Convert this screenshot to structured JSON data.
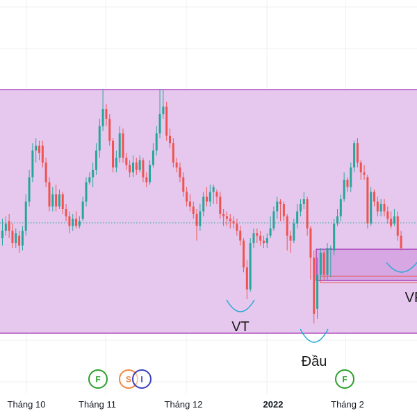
{
  "chart_data": {
    "type": "candlestick",
    "y_range": [
      0,
      100
    ],
    "grid": true,
    "candle_colors": {
      "up": "#26a69a",
      "down": "#ef5350"
    },
    "zone_color": "#e6c8ee",
    "zone_border_color": "#9c27b0",
    "current_price_line_color": "#26a69a",
    "x_tick_labels": [
      "Tháng 10",
      "Tháng 11",
      "Tháng 12",
      "2022",
      "Tháng 2"
    ],
    "event_badges": [
      {
        "letter": "F",
        "color": "#2ca02c"
      },
      {
        "letter": "S",
        "color": "#f0883e"
      },
      {
        "letter": "I",
        "color": "#3b3fbf"
      },
      {
        "letter": "F",
        "color": "#2ca02c"
      }
    ],
    "annotations": [
      "VT",
      "Đầu",
      "VP"
    ],
    "candles": [
      {
        "o": 39,
        "c": 42,
        "h": 47,
        "l": 36
      },
      {
        "o": 42,
        "c": 45,
        "h": 48,
        "l": 40
      },
      {
        "o": 46,
        "c": 42,
        "h": 49,
        "l": 39
      },
      {
        "o": 42,
        "c": 37,
        "h": 45,
        "l": 35
      },
      {
        "o": 37,
        "c": 41,
        "h": 43,
        "l": 35
      },
      {
        "o": 40,
        "c": 36,
        "h": 42,
        "l": 33
      },
      {
        "o": 36,
        "c": 42,
        "h": 44,
        "l": 34
      },
      {
        "o": 42,
        "c": 54,
        "h": 57,
        "l": 40
      },
      {
        "o": 54,
        "c": 64,
        "h": 67,
        "l": 52
      },
      {
        "o": 64,
        "c": 75,
        "h": 78,
        "l": 62
      },
      {
        "o": 75,
        "c": 77,
        "h": 80,
        "l": 70
      },
      {
        "o": 77,
        "c": 74,
        "h": 79,
        "l": 71
      },
      {
        "o": 77,
        "c": 70,
        "h": 79,
        "l": 68
      },
      {
        "o": 70,
        "c": 62,
        "h": 72,
        "l": 60
      },
      {
        "o": 62,
        "c": 52,
        "h": 64,
        "l": 50
      },
      {
        "o": 52,
        "c": 57,
        "h": 60,
        "l": 50
      },
      {
        "o": 57,
        "c": 52,
        "h": 61,
        "l": 50
      },
      {
        "o": 52,
        "c": 57,
        "h": 59,
        "l": 51
      },
      {
        "o": 57,
        "c": 51,
        "h": 58,
        "l": 49
      },
      {
        "o": 51,
        "c": 48,
        "h": 53,
        "l": 46
      },
      {
        "o": 48,
        "c": 44,
        "h": 50,
        "l": 41
      },
      {
        "o": 44,
        "c": 47,
        "h": 49,
        "l": 42
      },
      {
        "o": 47,
        "c": 44,
        "h": 50,
        "l": 43
      },
      {
        "o": 44,
        "c": 46,
        "h": 48,
        "l": 43
      },
      {
        "o": 47,
        "c": 54,
        "h": 56,
        "l": 46
      },
      {
        "o": 54,
        "c": 62,
        "h": 64,
        "l": 52
      },
      {
        "o": 62,
        "c": 64,
        "h": 66,
        "l": 61
      },
      {
        "o": 64,
        "c": 67,
        "h": 70,
        "l": 60
      },
      {
        "o": 67,
        "c": 75,
        "h": 78,
        "l": 65
      },
      {
        "o": 75,
        "c": 85,
        "h": 88,
        "l": 72
      },
      {
        "o": 85,
        "c": 92,
        "h": 100,
        "l": 83
      },
      {
        "o": 92,
        "c": 88,
        "h": 94,
        "l": 85
      },
      {
        "o": 88,
        "c": 79,
        "h": 90,
        "l": 77
      },
      {
        "o": 79,
        "c": 68,
        "h": 80,
        "l": 66
      },
      {
        "o": 68,
        "c": 72,
        "h": 75,
        "l": 66
      },
      {
        "o": 72,
        "c": 82,
        "h": 85,
        "l": 70
      },
      {
        "o": 82,
        "c": 72,
        "h": 84,
        "l": 70
      },
      {
        "o": 72,
        "c": 69,
        "h": 74,
        "l": 67
      },
      {
        "o": 69,
        "c": 66,
        "h": 71,
        "l": 64
      },
      {
        "o": 66,
        "c": 70,
        "h": 73,
        "l": 64
      },
      {
        "o": 70,
        "c": 67,
        "h": 72,
        "l": 65
      },
      {
        "o": 67,
        "c": 71,
        "h": 73,
        "l": 66
      },
      {
        "o": 71,
        "c": 64,
        "h": 72,
        "l": 62
      },
      {
        "o": 64,
        "c": 62,
        "h": 66,
        "l": 60
      },
      {
        "o": 62,
        "c": 69,
        "h": 71,
        "l": 61
      },
      {
        "o": 69,
        "c": 75,
        "h": 78,
        "l": 68
      },
      {
        "o": 75,
        "c": 82,
        "h": 85,
        "l": 73
      },
      {
        "o": 82,
        "c": 90,
        "h": 100,
        "l": 80
      },
      {
        "o": 90,
        "c": 93,
        "h": 100,
        "l": 88
      },
      {
        "o": 93,
        "c": 81,
        "h": 95,
        "l": 79
      },
      {
        "o": 81,
        "c": 78,
        "h": 84,
        "l": 76
      },
      {
        "o": 78,
        "c": 70,
        "h": 80,
        "l": 68
      },
      {
        "o": 70,
        "c": 68,
        "h": 72,
        "l": 66
      },
      {
        "o": 68,
        "c": 64,
        "h": 70,
        "l": 62
      },
      {
        "o": 64,
        "c": 58,
        "h": 66,
        "l": 56
      },
      {
        "o": 58,
        "c": 54,
        "h": 60,
        "l": 52
      },
      {
        "o": 54,
        "c": 52,
        "h": 57,
        "l": 50
      },
      {
        "o": 52,
        "c": 49,
        "h": 54,
        "l": 47
      },
      {
        "o": 49,
        "c": 44,
        "h": 51,
        "l": 38
      },
      {
        "o": 44,
        "c": 50,
        "h": 53,
        "l": 42
      },
      {
        "o": 50,
        "c": 56,
        "h": 58,
        "l": 48
      },
      {
        "o": 56,
        "c": 54,
        "h": 60,
        "l": 52
      },
      {
        "o": 54,
        "c": 58,
        "h": 61,
        "l": 52
      },
      {
        "o": 58,
        "c": 60,
        "h": 61,
        "l": 53
      },
      {
        "o": 58,
        "c": 56,
        "h": 59,
        "l": 53
      },
      {
        "o": 56,
        "c": 49,
        "h": 58,
        "l": 47
      },
      {
        "o": 49,
        "c": 48,
        "h": 51,
        "l": 44
      },
      {
        "o": 48,
        "c": 47,
        "h": 50,
        "l": 44
      },
      {
        "o": 47,
        "c": 46,
        "h": 49,
        "l": 43
      },
      {
        "o": 46,
        "c": 45,
        "h": 48,
        "l": 43
      },
      {
        "o": 45,
        "c": 42,
        "h": 47,
        "l": 40
      },
      {
        "o": 42,
        "c": 38,
        "h": 44,
        "l": 36
      },
      {
        "o": 38,
        "c": 27,
        "h": 39,
        "l": 25
      },
      {
        "o": 27,
        "c": 18,
        "h": 30,
        "l": 14
      },
      {
        "o": 18,
        "c": 37,
        "h": 39,
        "l": 17
      },
      {
        "o": 37,
        "c": 41,
        "h": 43,
        "l": 35
      },
      {
        "o": 41,
        "c": 40,
        "h": 43,
        "l": 37
      },
      {
        "o": 40,
        "c": 38,
        "h": 42,
        "l": 36
      },
      {
        "o": 38,
        "c": 37,
        "h": 40,
        "l": 35
      },
      {
        "o": 37,
        "c": 39,
        "h": 41,
        "l": 35
      },
      {
        "o": 40,
        "c": 43,
        "h": 48,
        "l": 39
      },
      {
        "o": 43,
        "c": 50,
        "h": 52,
        "l": 42
      },
      {
        "o": 50,
        "c": 54,
        "h": 56,
        "l": 47
      },
      {
        "o": 54,
        "c": 53,
        "h": 55,
        "l": 46
      },
      {
        "o": 53,
        "c": 48,
        "h": 54,
        "l": 46
      },
      {
        "o": 48,
        "c": 40,
        "h": 49,
        "l": 34
      },
      {
        "o": 40,
        "c": 38,
        "h": 42,
        "l": 33
      },
      {
        "o": 38,
        "c": 45,
        "h": 47,
        "l": 37
      },
      {
        "o": 45,
        "c": 50,
        "h": 53,
        "l": 43
      },
      {
        "o": 50,
        "c": 53,
        "h": 55,
        "l": 48
      },
      {
        "o": 53,
        "c": 55,
        "h": 58,
        "l": 51
      },
      {
        "o": 55,
        "c": 43,
        "h": 56,
        "l": 40
      },
      {
        "o": 43,
        "c": 31,
        "h": 44,
        "l": 22
      },
      {
        "o": 31,
        "c": 8,
        "h": 34,
        "l": 4
      },
      {
        "o": 10,
        "c": 24,
        "h": 31,
        "l": 6
      },
      {
        "o": 24,
        "c": 33,
        "h": 35,
        "l": 22
      },
      {
        "o": 33,
        "c": 24,
        "h": 34,
        "l": 22
      },
      {
        "o": 24,
        "c": 35,
        "h": 37,
        "l": 22
      },
      {
        "o": 35,
        "c": 35,
        "h": 36,
        "l": 23
      },
      {
        "o": 34,
        "c": 45,
        "h": 47,
        "l": 32
      },
      {
        "o": 45,
        "c": 48,
        "h": 51,
        "l": 44
      },
      {
        "o": 48,
        "c": 55,
        "h": 57,
        "l": 46
      },
      {
        "o": 55,
        "c": 63,
        "h": 66,
        "l": 54
      },
      {
        "o": 63,
        "c": 60,
        "h": 64,
        "l": 58
      },
      {
        "o": 60,
        "c": 68,
        "h": 70,
        "l": 58
      },
      {
        "o": 68,
        "c": 78,
        "h": 79,
        "l": 66
      },
      {
        "o": 78,
        "c": 70,
        "h": 80,
        "l": 68
      },
      {
        "o": 70,
        "c": 66,
        "h": 71,
        "l": 63
      },
      {
        "o": 66,
        "c": 65,
        "h": 69,
        "l": 63
      },
      {
        "o": 64,
        "c": 45,
        "h": 65,
        "l": 43
      },
      {
        "o": 45,
        "c": 58,
        "h": 60,
        "l": 44
      },
      {
        "o": 58,
        "c": 54,
        "h": 59,
        "l": 52
      },
      {
        "o": 54,
        "c": 50,
        "h": 56,
        "l": 48
      },
      {
        "o": 50,
        "c": 53,
        "h": 55,
        "l": 48
      },
      {
        "o": 53,
        "c": 50,
        "h": 55,
        "l": 48
      },
      {
        "o": 50,
        "c": 47,
        "h": 52,
        "l": 45
      },
      {
        "o": 47,
        "c": 44,
        "h": 50,
        "l": 43
      },
      {
        "o": 45,
        "c": 48,
        "h": 51,
        "l": 44
      },
      {
        "o": 48,
        "c": 40,
        "h": 50,
        "l": 38
      },
      {
        "o": 40,
        "c": 35,
        "h": 42,
        "l": 34
      }
    ]
  }
}
